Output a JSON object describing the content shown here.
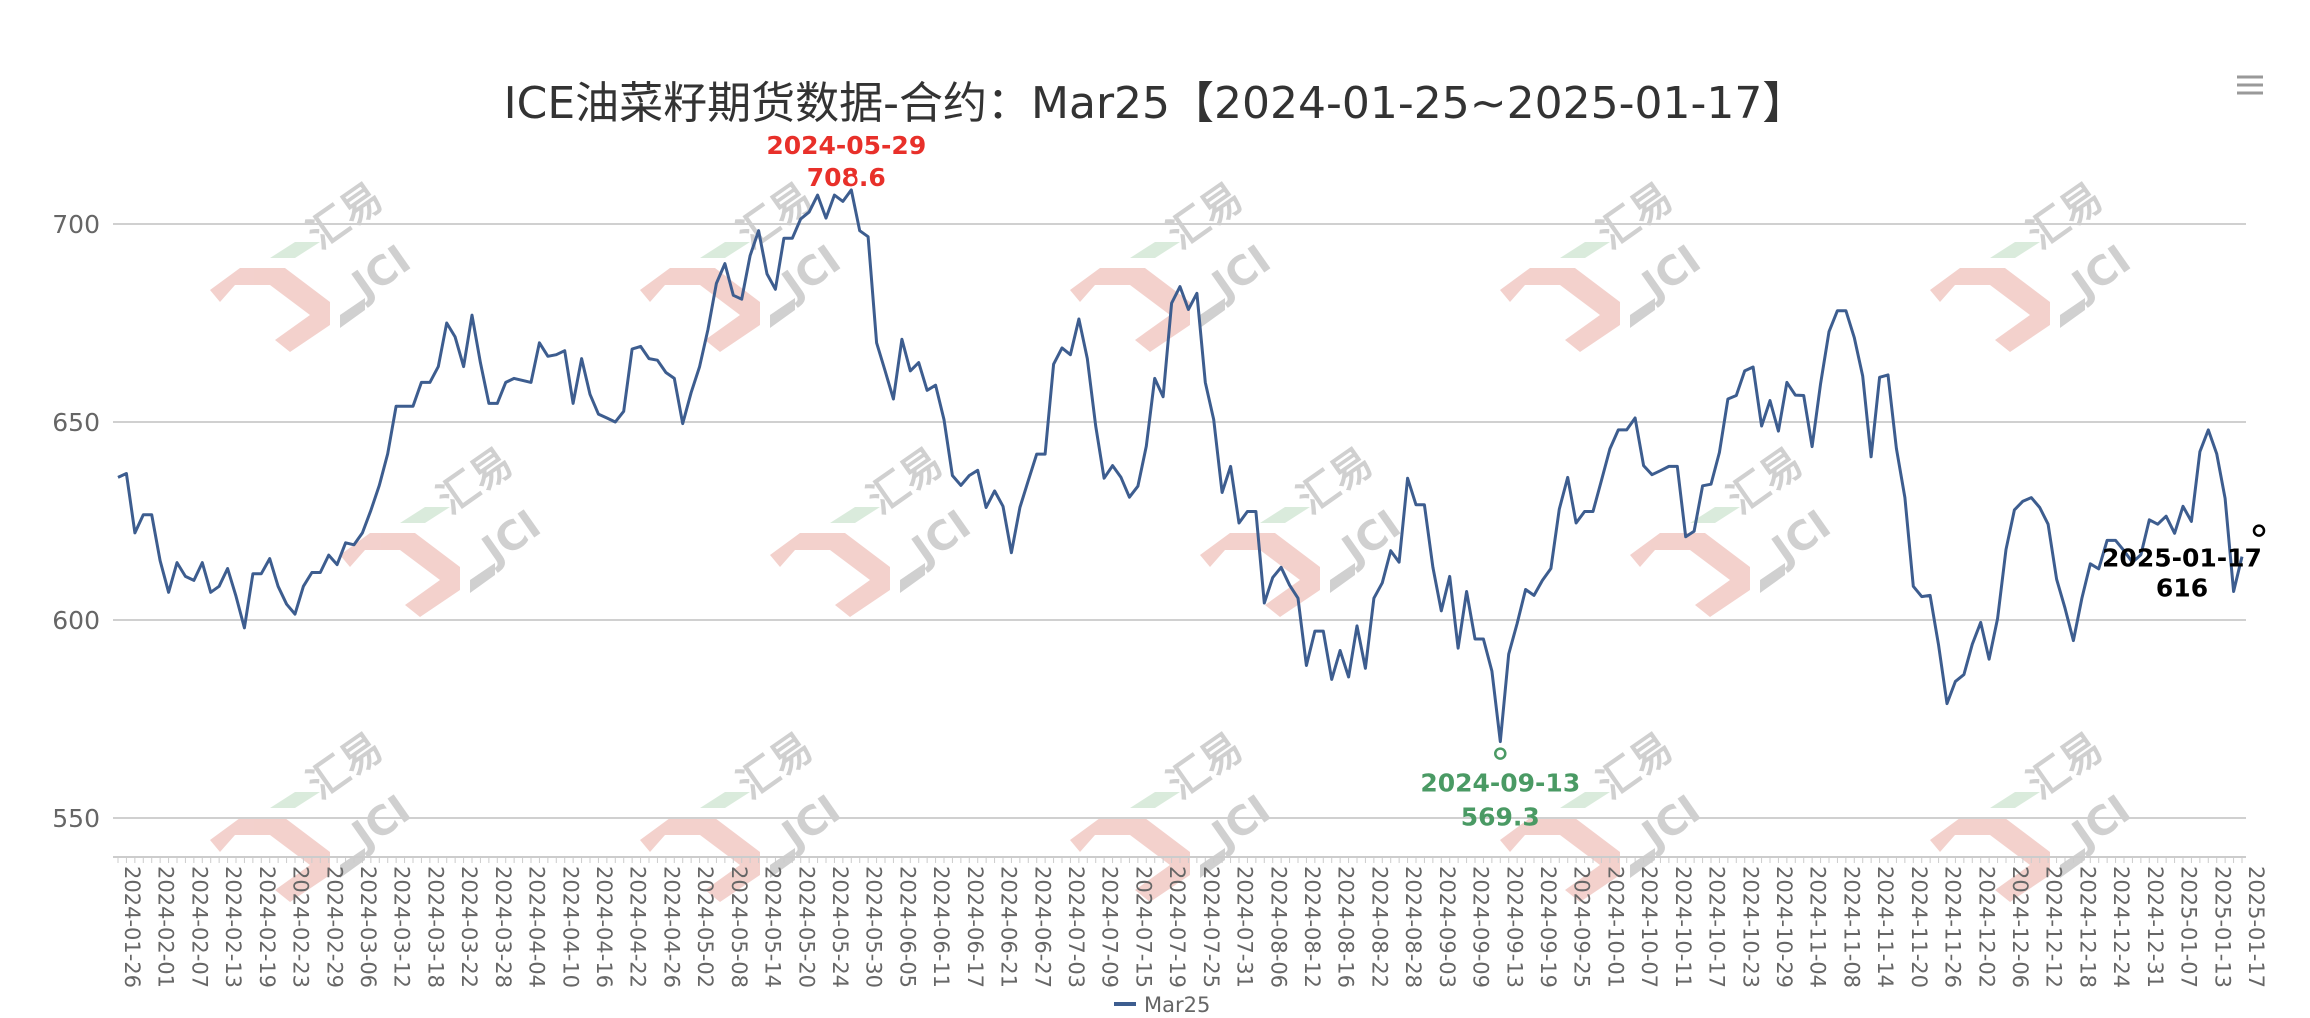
{
  "chart_data": {
    "type": "line",
    "title": "ICE油菜籽期货数据-合约：Mar25【2024-01-25~2025-01-17】",
    "xlabel": "",
    "ylabel": "",
    "ylim": [
      540,
      710
    ],
    "yticks": [
      550,
      600,
      650,
      700
    ],
    "grid": true,
    "legend_position": "bottom-center",
    "x_tick_labels": [
      "2024-01-26",
      "2024-02-01",
      "2024-02-07",
      "2024-02-13",
      "2024-02-19",
      "2024-02-23",
      "2024-02-29",
      "2024-03-06",
      "2024-03-12",
      "2024-03-18",
      "2024-03-22",
      "2024-03-28",
      "2024-04-04",
      "2024-04-10",
      "2024-04-16",
      "2024-04-22",
      "2024-04-26",
      "2024-05-02",
      "2024-05-08",
      "2024-05-14",
      "2024-05-20",
      "2024-05-24",
      "2024-05-30",
      "2024-06-05",
      "2024-06-11",
      "2024-06-17",
      "2024-06-21",
      "2024-06-27",
      "2024-07-03",
      "2024-07-09",
      "2024-07-15",
      "2024-07-19",
      "2024-07-25",
      "2024-07-31",
      "2024-08-06",
      "2024-08-12",
      "2024-08-16",
      "2024-08-22",
      "2024-08-28",
      "2024-09-03",
      "2024-09-09",
      "2024-09-13",
      "2024-09-19",
      "2024-09-25",
      "2024-10-01",
      "2024-10-07",
      "2024-10-11",
      "2024-10-17",
      "2024-10-23",
      "2024-10-29",
      "2024-11-04",
      "2024-11-08",
      "2024-11-14",
      "2024-11-20",
      "2024-11-26",
      "2024-12-02",
      "2024-12-06",
      "2024-12-12",
      "2024-12-18",
      "2024-12-24",
      "2024-12-31",
      "2025-01-07",
      "2025-01-13",
      "2025-01-17"
    ],
    "series": [
      {
        "name": "Mar25",
        "color": "#3d5d8f",
        "values": [
          636,
          637,
          622,
          626.6,
          626.6,
          615,
          607,
          614.5,
          611,
          610,
          614.5,
          607,
          608.5,
          613,
          606,
          598,
          611.7,
          611.7,
          615.5,
          608.5,
          604,
          601.5,
          608.5,
          612,
          612,
          616.4,
          614,
          619.5,
          619,
          622,
          627.7,
          634,
          642,
          654,
          654,
          654,
          660,
          660,
          664,
          675,
          671.5,
          664,
          677,
          665,
          654.7,
          654.7,
          660,
          661,
          660.5,
          660,
          670,
          666.6,
          667,
          668,
          654.7,
          666,
          657,
          652,
          651,
          650,
          652.7,
          668.4,
          669.1,
          666,
          665.6,
          662.5,
          661,
          649.6,
          657.4,
          664,
          673.4,
          685,
          690,
          682,
          681,
          692,
          698.3,
          687.4,
          683.5,
          696.4,
          696.4,
          701.3,
          703,
          707.3,
          701.5,
          707.3,
          705.7,
          708.6,
          698.3,
          696.8,
          670,
          663,
          655.8,
          670.9,
          662.9,
          665,
          658,
          659.3,
          650.6,
          636.5,
          634,
          636.5,
          637.8,
          628.4,
          632.6,
          628.7,
          617,
          628.4,
          635.2,
          641.9,
          641.9,
          664.6,
          668.7,
          667,
          676,
          666,
          649,
          635.8,
          639,
          636,
          631,
          633.8,
          643.9,
          661,
          656.4,
          680,
          684.2,
          678.4,
          682.5,
          660,
          650.6,
          632.2,
          638.8,
          624.5,
          627.4,
          627.4,
          604.3,
          610.7,
          613.3,
          608.8,
          605.5,
          588.5,
          597.2,
          597.2,
          585,
          592.3,
          585.6,
          598.5,
          587.8,
          605.5,
          609.4,
          617.5,
          614.6,
          635.8,
          629.1,
          629.1,
          613.3,
          602.3,
          611,
          592.9,
          607.2,
          595.2,
          595.2,
          587.1,
          569.3,
          591.4,
          599.1,
          607.7,
          606.2,
          610,
          613,
          628,
          636,
          624.5,
          627.4,
          627.4,
          635.2,
          643.2,
          648,
          648,
          651,
          639,
          636.7,
          637.7,
          638.8,
          638.8,
          621,
          622.4,
          633.9,
          634.3,
          642.3,
          655.8,
          656.7,
          662.9,
          663.9,
          649,
          655.4,
          647.7,
          660,
          656.8,
          656.7,
          643.8,
          659.7,
          672.8,
          678.1,
          678.1,
          671.3,
          661.6,
          641.2,
          661.3,
          661.9,
          643.3,
          630.9,
          608.5,
          605.9,
          606.2,
          593.6,
          578.9,
          584.5,
          586.2,
          593.9,
          599.4,
          590.1,
          600.4,
          617.8,
          627.8,
          630,
          630.9,
          628.4,
          624.2,
          610.3,
          603,
          594.8,
          605.5,
          614.2,
          612.9,
          620.1,
          620.1,
          617.5,
          614.6,
          616.5,
          625.3,
          624.2,
          626.2,
          621.9,
          628.7,
          624.9,
          642.5,
          648,
          642,
          630.7,
          607.2,
          616
        ]
      }
    ],
    "annotations": {
      "max": {
        "date": "2024-05-29",
        "value": "708.6",
        "color": "#e8302a"
      },
      "min": {
        "date": "2024-09-13",
        "value": "569.3",
        "color": "#4a9a64"
      },
      "last": {
        "date": "2025-01-17",
        "value": "616",
        "color": "#000000"
      }
    },
    "legend": [
      "Mar25"
    ]
  },
  "toolbar": {
    "menu_icon": "hamburger-menu-icon"
  },
  "watermark": {
    "text_cn": "汇易",
    "text_en": "JCI"
  }
}
